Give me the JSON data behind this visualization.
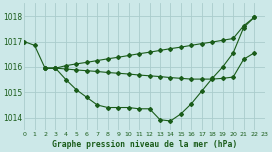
{
  "title": "Graphe pression niveau de la mer (hPa)",
  "background_color": "#cce8e8",
  "grid_color": "#aacccc",
  "line_color": "#1a5c1a",
  "xlim": [
    0,
    23
  ],
  "ylim": [
    1013.5,
    1018.5
  ],
  "yticks": [
    1014,
    1015,
    1016,
    1017,
    1018
  ],
  "xticks": [
    0,
    1,
    2,
    3,
    4,
    5,
    6,
    7,
    8,
    9,
    10,
    11,
    12,
    13,
    14,
    15,
    16,
    17,
    18,
    19,
    20,
    21,
    22,
    23
  ],
  "series1_x": [
    0,
    1,
    2,
    3,
    4,
    5,
    6,
    7,
    8,
    9,
    10,
    11,
    12,
    13,
    14,
    15,
    16,
    17,
    18,
    19,
    20,
    21,
    22
  ],
  "series1_y": [
    1017.0,
    1016.85,
    1015.95,
    1015.95,
    1015.5,
    1015.1,
    1014.8,
    1014.5,
    1014.4,
    1014.4,
    1014.4,
    1014.35,
    1014.35,
    1013.92,
    1013.87,
    1014.15,
    1014.55,
    1015.05,
    1015.55,
    1016.0,
    1016.55,
    1017.55,
    1017.95
  ],
  "series2_x": [
    2,
    3,
    4,
    5,
    6,
    7,
    8,
    9,
    10,
    11,
    12,
    13,
    14,
    15,
    16,
    17,
    18,
    19,
    20,
    21,
    22
  ],
  "series2_y": [
    1015.95,
    1015.95,
    1016.05,
    1016.12,
    1016.18,
    1016.25,
    1016.32,
    1016.38,
    1016.45,
    1016.52,
    1016.58,
    1016.65,
    1016.72,
    1016.78,
    1016.85,
    1016.92,
    1016.98,
    1017.05,
    1017.12,
    1017.62,
    1017.95
  ],
  "series3_x": [
    2,
    3,
    4,
    5,
    6,
    7,
    8,
    9,
    10,
    11,
    12,
    13,
    14,
    15,
    16,
    17,
    18,
    19,
    20,
    21,
    22
  ],
  "series3_y": [
    1015.95,
    1015.95,
    1015.92,
    1015.88,
    1015.85,
    1015.82,
    1015.78,
    1015.75,
    1015.72,
    1015.68,
    1015.65,
    1015.62,
    1015.58,
    1015.55,
    1015.52,
    1015.52,
    1015.52,
    1015.55,
    1015.6,
    1016.3,
    1016.55
  ]
}
